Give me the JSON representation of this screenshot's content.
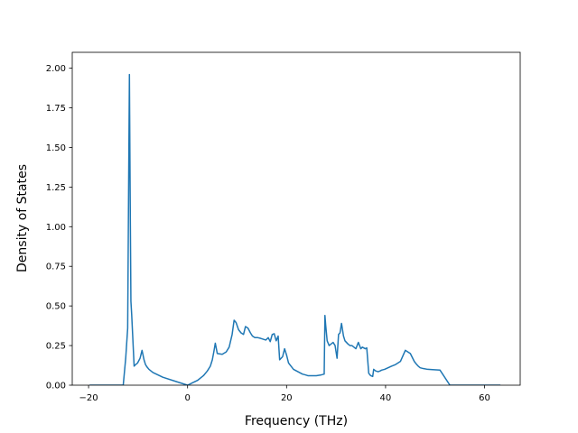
{
  "chart_data": {
    "type": "line",
    "title": "",
    "xlabel": "Frequency (THz)",
    "ylabel": "Density of States",
    "xlim": [
      -23.3,
      67.2
    ],
    "ylim": [
      0,
      2.1
    ],
    "xticks": [
      -20,
      0,
      20,
      40,
      60
    ],
    "yticks": [
      0.0,
      0.25,
      0.5,
      0.75,
      1.0,
      1.25,
      1.5,
      1.75,
      2.0
    ],
    "xtick_labels": [
      "−20",
      "0",
      "20",
      "40",
      "60"
    ],
    "ytick_labels": [
      "0.00",
      "0.25",
      "0.50",
      "0.75",
      "1.00",
      "1.25",
      "1.50",
      "1.75",
      "2.00"
    ],
    "grid": false,
    "line_color": "#1f77b4",
    "series": [
      {
        "x": [
          -19.8,
          -17.0,
          -14.0,
          -13.0,
          -12.5,
          -12.1,
          -11.9,
          -11.75,
          -11.6,
          -11.45,
          -11.3,
          -11.1,
          -10.8,
          -10.5,
          -10.1,
          -9.6,
          -9.2,
          -8.8,
          -8.5,
          -8.2,
          -7.8,
          -7.0,
          -5.0,
          -2.0,
          0.0,
          1.0,
          2.0,
          2.8,
          3.2,
          4.0,
          4.6,
          5.0,
          5.3,
          5.6,
          6.0,
          7.0,
          7.8,
          8.4,
          9.0,
          9.4,
          9.8,
          10.3,
          10.8,
          11.3,
          11.7,
          12.2,
          12.7,
          13.1,
          13.6,
          14.2,
          14.8,
          15.3,
          15.8,
          16.3,
          16.7,
          17.1,
          17.5,
          17.9,
          18.3,
          18.6,
          18.9,
          19.2,
          19.6,
          20.0,
          20.4,
          20.9,
          21.4,
          22.0,
          22.6,
          23.2,
          23.8,
          24.3,
          24.6,
          25.0,
          26.0,
          27.0,
          27.6,
          27.75,
          27.9,
          28.2,
          28.6,
          29.0,
          29.4,
          29.8,
          30.2,
          30.5,
          30.8,
          31.1,
          31.5,
          31.8,
          32.1,
          32.4,
          32.8,
          33.2,
          33.6,
          34.0,
          34.5,
          35.0,
          35.3,
          35.6,
          35.9,
          36.2,
          36.6,
          37.0,
          37.4,
          37.6,
          38.0,
          38.5,
          38.9,
          39.2,
          39.8,
          40.5,
          41.2,
          42.0,
          43.0,
          44.0,
          45.0,
          45.8,
          46.3,
          46.6,
          47.0,
          47.6,
          48.5,
          49.5,
          51.0,
          53.0,
          55.0,
          56.2,
          56.4,
          57.0,
          60.0,
          63.2
        ],
        "y": [
          0.0,
          0.0,
          0.0,
          0.0,
          0.17,
          0.36,
          1.3,
          1.96,
          1.2,
          0.53,
          0.45,
          0.32,
          0.12,
          0.13,
          0.14,
          0.17,
          0.22,
          0.16,
          0.13,
          0.115,
          0.1,
          0.08,
          0.05,
          0.02,
          0.0,
          0.015,
          0.03,
          0.05,
          0.06,
          0.09,
          0.12,
          0.16,
          0.21,
          0.265,
          0.2,
          0.195,
          0.21,
          0.24,
          0.32,
          0.41,
          0.395,
          0.35,
          0.33,
          0.32,
          0.37,
          0.36,
          0.33,
          0.31,
          0.3,
          0.3,
          0.295,
          0.29,
          0.285,
          0.3,
          0.275,
          0.32,
          0.325,
          0.28,
          0.31,
          0.16,
          0.17,
          0.18,
          0.23,
          0.19,
          0.14,
          0.12,
          0.1,
          0.09,
          0.08,
          0.07,
          0.065,
          0.06,
          0.06,
          0.06,
          0.06,
          0.065,
          0.07,
          0.44,
          0.38,
          0.28,
          0.25,
          0.26,
          0.27,
          0.25,
          0.17,
          0.32,
          0.33,
          0.39,
          0.31,
          0.28,
          0.27,
          0.26,
          0.25,
          0.25,
          0.24,
          0.23,
          0.27,
          0.23,
          0.24,
          0.235,
          0.23,
          0.235,
          0.075,
          0.06,
          0.055,
          0.1,
          0.09,
          0.085,
          0.09,
          0.095,
          0.1,
          0.11,
          0.12,
          0.13,
          0.15,
          0.22,
          0.2,
          0.15,
          0.13,
          0.12,
          0.11,
          0.105,
          0.1,
          0.098,
          0.095,
          0.0,
          0.0,
          0.0,
          0.0,
          0.0,
          0.0,
          0.0
        ]
      }
    ]
  }
}
